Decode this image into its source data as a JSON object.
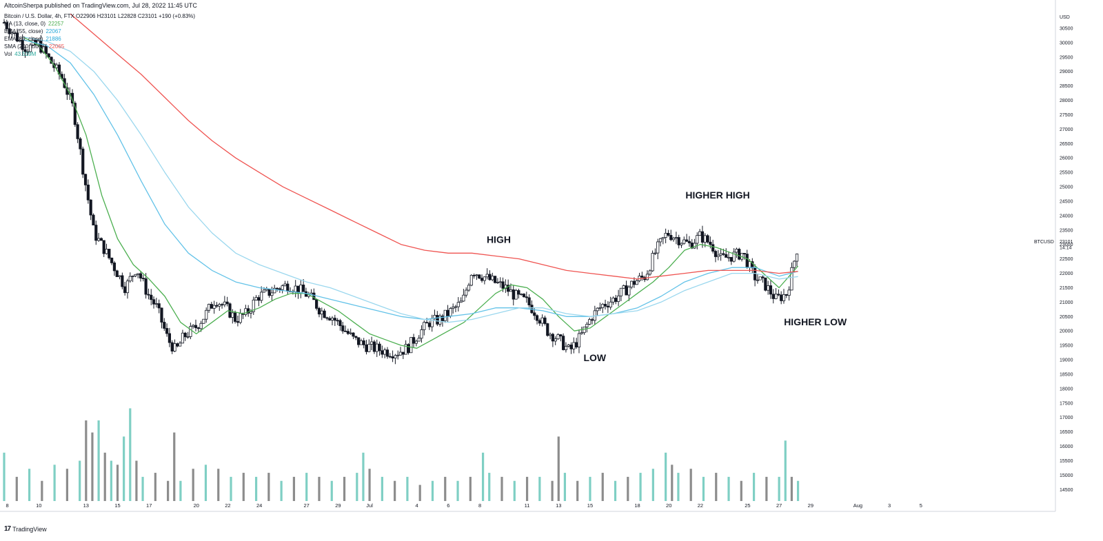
{
  "header": {
    "published_by": "AltcoinSherpa published on TradingView.com, Jul 28, 2022 11:45 UTC"
  },
  "legend": {
    "symbol_line": "Bitcoin / U.S. Dollar, 4h, FTX  O22906  H23101  L22828  C23101  +190 (+0.83%)",
    "indicators": [
      {
        "label": "MA (13, close, 0)",
        "value": "22257",
        "color": "#4caf50"
      },
      {
        "label": "EMA (55, close)",
        "value": "22067",
        "color": "#26a8d8"
      },
      {
        "label": "EMA (89, close)",
        "value": "21886",
        "color": "#26a8d8"
      },
      {
        "label": "SMA (200, close)",
        "value": "22065",
        "color": "#ef5350"
      },
      {
        "label": "Vol",
        "value": "43.519M",
        "color": "#26a69a"
      }
    ]
  },
  "footer": {
    "logo_label": "TradingView",
    "logo_mark": "17"
  },
  "colors": {
    "ma13": "#4caf50",
    "ema55": "#62c2e8",
    "ema89": "#9ad7ee",
    "sma200": "#ef5350",
    "vol_up": "#7fcfc4",
    "vol_down": "#8c8c8c",
    "candle_up_fill": "#ffffff",
    "candle_down_fill": "#131722",
    "axis_text": "#131722"
  },
  "chart_data": {
    "type": "line",
    "symbol": "BTCUSD",
    "price_axis_unit": "USD",
    "last_price": "23101",
    "countdown": "14:14",
    "y_ticks": [
      30500,
      30000,
      29500,
      29000,
      28500,
      28000,
      27500,
      27000,
      26500,
      26000,
      25500,
      25000,
      24500,
      24000,
      23500,
      23000,
      22500,
      22000,
      21500,
      21000,
      20500,
      20000,
      19500,
      19000,
      18500,
      18000,
      17500,
      17000,
      16500,
      16000,
      15500,
      15000,
      14500
    ],
    "ylim": [
      14100,
      31050
    ],
    "x_ticks": [
      {
        "label": "8",
        "day": 8
      },
      {
        "label": "10",
        "day": 10
      },
      {
        "label": "13",
        "day": 13
      },
      {
        "label": "15",
        "day": 15
      },
      {
        "label": "17",
        "day": 17
      },
      {
        "label": "20",
        "day": 20
      },
      {
        "label": "22",
        "day": 22
      },
      {
        "label": "24",
        "day": 24
      },
      {
        "label": "27",
        "day": 27
      },
      {
        "label": "29",
        "day": 29
      },
      {
        "label": "Jul",
        "day": 31
      },
      {
        "label": "4",
        "day": 34
      },
      {
        "label": "6",
        "day": 36
      },
      {
        "label": "8",
        "day": 38
      },
      {
        "label": "11",
        "day": 41
      },
      {
        "label": "13",
        "day": 43
      },
      {
        "label": "15",
        "day": 45
      },
      {
        "label": "18",
        "day": 48
      },
      {
        "label": "20",
        "day": 50
      },
      {
        "label": "22",
        "day": 52
      },
      {
        "label": "25",
        "day": 55
      },
      {
        "label": "27",
        "day": 57
      },
      {
        "label": "29",
        "day": 59
      },
      {
        "label": "Aug",
        "day": 62
      },
      {
        "label": "3",
        "day": 64
      },
      {
        "label": "5",
        "day": 66
      }
    ],
    "xlim": [
      7.8,
      74.5
    ],
    "price_path": {
      "day": [
        7.8,
        8.5,
        9.2,
        10.0,
        10.8,
        11.5,
        12.2,
        12.9,
        13.5,
        14.2,
        14.9,
        15.5,
        16.2,
        16.9,
        17.5,
        18.2,
        18.7,
        19.2,
        19.9,
        20.5,
        21.2,
        21.9,
        22.5,
        23.2,
        23.9,
        24.5,
        25.2,
        25.9,
        26.6,
        27.2,
        27.9,
        28.6,
        29.3,
        30.0,
        30.7,
        31.3,
        32.0,
        32.7,
        33.4,
        34.1,
        34.8,
        35.5,
        36.2,
        36.9,
        37.5,
        38.2,
        38.9,
        39.6,
        40.3,
        41.0,
        41.6,
        42.3,
        43.0,
        43.7,
        44.4,
        45.1,
        45.8,
        46.5,
        47.2,
        47.8,
        48.5,
        49.2,
        49.9,
        50.6,
        51.3,
        52.0,
        52.7,
        53.3,
        54.0,
        54.7,
        55.4,
        56.1,
        56.8,
        57.5,
        58.2
      ],
      "close": [
        30700,
        30250,
        29800,
        29950,
        29300,
        28750,
        27700,
        25300,
        23400,
        22800,
        22100,
        21500,
        22200,
        21300,
        20800,
        19700,
        19300,
        19800,
        20100,
        20500,
        21100,
        20800,
        20400,
        20600,
        21200,
        21300,
        21500,
        21600,
        21400,
        21200,
        20700,
        20500,
        20100,
        19700,
        19500,
        19400,
        19300,
        19250,
        19400,
        19900,
        20300,
        20400,
        20700,
        21000,
        22100,
        21900,
        21700,
        21500,
        21200,
        21000,
        20600,
        20000,
        19700,
        19300,
        19800,
        20500,
        20900,
        21100,
        21400,
        21700,
        21900,
        22800,
        23400,
        23200,
        23000,
        23300,
        23000,
        22500,
        22600,
        22700,
        21900,
        21600,
        21100,
        21300,
        23000
      ]
    },
    "series": [
      {
        "name": "MA (13, close, 0)",
        "day": [
          9.0,
          10.0,
          11.0,
          12.0,
          13.0,
          14.0,
          15.0,
          16.0,
          17.0,
          18.0,
          19.0,
          20.0,
          21.0,
          22.0,
          23.0,
          24.0,
          25.0,
          26.0,
          27.0,
          28.0,
          29.0,
          30.0,
          31.0,
          32.0,
          33.0,
          34.0,
          35.0,
          36.0,
          37.0,
          38.0,
          39.0,
          40.0,
          41.0,
          42.0,
          43.0,
          44.0,
          45.0,
          46.0,
          47.0,
          48.0,
          49.0,
          50.0,
          51.0,
          52.0,
          53.0,
          54.0,
          55.0,
          56.0,
          57.0,
          58.2
        ],
        "values": [
          30200,
          29900,
          29200,
          28200,
          26800,
          24700,
          23200,
          22300,
          21800,
          21200,
          20300,
          19900,
          20300,
          20700,
          20600,
          20800,
          21100,
          21300,
          21300,
          21000,
          20700,
          20300,
          19900,
          19700,
          19500,
          19400,
          19700,
          20000,
          20300,
          20800,
          21300,
          21600,
          21500,
          21100,
          20500,
          20000,
          20100,
          20500,
          20900,
          21300,
          21700,
          22200,
          22800,
          23000,
          22900,
          22700,
          22500,
          22000,
          21500,
          22250
        ]
      },
      {
        "name": "EMA (55, close)",
        "day": [
          9.0,
          10.5,
          12.0,
          13.5,
          15.0,
          16.5,
          18.0,
          19.5,
          21.0,
          22.5,
          24.0,
          25.5,
          27.0,
          28.5,
          30.0,
          31.5,
          33.0,
          34.5,
          36.0,
          37.5,
          39.0,
          40.5,
          42.0,
          43.5,
          45.0,
          46.5,
          48.0,
          49.5,
          51.0,
          52.5,
          54.0,
          55.5,
          57.0,
          58.2
        ],
        "values": [
          30100,
          29900,
          29300,
          28200,
          26800,
          25200,
          23700,
          22700,
          22100,
          21700,
          21500,
          21400,
          21300,
          21100,
          20900,
          20700,
          20500,
          20400,
          20500,
          20600,
          20800,
          20800,
          20700,
          20500,
          20500,
          20600,
          20800,
          21200,
          21700,
          22000,
          22200,
          22200,
          21900,
          22067
        ]
      },
      {
        "name": "EMA (89, close)",
        "day": [
          9.0,
          10.5,
          12.0,
          13.5,
          15.0,
          16.5,
          18.0,
          19.5,
          21.0,
          22.5,
          24.0,
          25.5,
          27.0,
          28.5,
          30.0,
          31.5,
          33.0,
          34.5,
          36.0,
          37.5,
          39.0,
          40.5,
          42.0,
          43.5,
          45.0,
          46.5,
          48.0,
          49.5,
          51.0,
          52.5,
          54.0,
          55.5,
          57.0,
          58.2
        ],
        "values": [
          30200,
          30050,
          29700,
          29000,
          28000,
          26800,
          25500,
          24300,
          23400,
          22700,
          22300,
          22000,
          21700,
          21500,
          21200,
          20900,
          20600,
          20400,
          20300,
          20400,
          20600,
          20800,
          20800,
          20600,
          20500,
          20600,
          20700,
          21000,
          21400,
          21700,
          22000,
          22000,
          21800,
          21886
        ]
      },
      {
        "name": "SMA (200, close)",
        "day": [
          12.0,
          13.5,
          15.0,
          16.5,
          18.0,
          19.5,
          21.0,
          22.5,
          24.0,
          25.5,
          27.0,
          28.5,
          30.0,
          31.5,
          33.0,
          34.5,
          36.0,
          37.5,
          39.0,
          40.5,
          42.0,
          43.5,
          45.0,
          46.5,
          48.0,
          49.5,
          51.0,
          52.5,
          54.0,
          55.5,
          57.0,
          58.2
        ],
        "values": [
          31000,
          30300,
          29600,
          28900,
          28100,
          27300,
          26600,
          26000,
          25500,
          25000,
          24600,
          24200,
          23800,
          23400,
          23000,
          22800,
          22700,
          22700,
          22600,
          22500,
          22300,
          22100,
          22000,
          21900,
          21800,
          21900,
          22000,
          22100,
          22100,
          22100,
          22000,
          22065
        ]
      }
    ],
    "volume": {
      "ylim_fraction_top": 0.3,
      "day": [
        7.8,
        8.6,
        9.4,
        10.2,
        11.0,
        11.8,
        12.6,
        13.0,
        13.4,
        13.8,
        14.2,
        14.6,
        15.0,
        15.4,
        15.8,
        16.2,
        16.6,
        17.4,
        18.2,
        18.6,
        19.0,
        19.8,
        20.6,
        21.4,
        22.2,
        23.0,
        23.8,
        24.6,
        25.4,
        26.2,
        27.0,
        27.8,
        28.6,
        29.4,
        30.2,
        30.6,
        31.0,
        31.8,
        32.6,
        33.4,
        34.2,
        35.0,
        35.8,
        36.6,
        37.4,
        38.2,
        38.6,
        39.4,
        40.2,
        41.0,
        41.8,
        42.6,
        43.0,
        43.4,
        44.2,
        45.0,
        45.8,
        46.6,
        47.4,
        48.2,
        49.0,
        49.8,
        50.2,
        50.6,
        51.4,
        52.2,
        53.0,
        53.8,
        54.6,
        55.4,
        56.2,
        57.0,
        57.4,
        57.8,
        58.2
      ],
      "values": [
        0.6,
        0.3,
        0.4,
        0.25,
        0.45,
        0.4,
        0.5,
        1.0,
        0.85,
        1.0,
        0.6,
        0.5,
        0.45,
        0.8,
        1.15,
        0.5,
        0.3,
        0.35,
        0.25,
        0.85,
        0.25,
        0.4,
        0.45,
        0.4,
        0.3,
        0.35,
        0.3,
        0.35,
        0.25,
        0.3,
        0.35,
        0.3,
        0.25,
        0.3,
        0.35,
        0.6,
        0.4,
        0.3,
        0.25,
        0.3,
        0.2,
        0.25,
        0.3,
        0.25,
        0.3,
        0.6,
        0.35,
        0.3,
        0.25,
        0.3,
        0.3,
        0.25,
        0.8,
        0.35,
        0.25,
        0.3,
        0.35,
        0.25,
        0.3,
        0.35,
        0.4,
        0.6,
        0.45,
        0.35,
        0.4,
        0.3,
        0.35,
        0.3,
        0.25,
        0.35,
        0.3,
        0.3,
        0.75,
        0.3,
        0.25
      ],
      "up": [
        1,
        0,
        1,
        0,
        1,
        0,
        1,
        0,
        0,
        1,
        0,
        1,
        0,
        1,
        1,
        0,
        1,
        0,
        0,
        0,
        1,
        0,
        1,
        0,
        1,
        0,
        1,
        0,
        1,
        0,
        1,
        0,
        1,
        0,
        1,
        1,
        0,
        1,
        0,
        1,
        0,
        1,
        0,
        1,
        0,
        1,
        1,
        0,
        1,
        0,
        1,
        0,
        0,
        1,
        0,
        1,
        0,
        1,
        0,
        1,
        1,
        1,
        0,
        1,
        0,
        1,
        0,
        1,
        0,
        1,
        0,
        1,
        1,
        0,
        1
      ]
    },
    "annotations": [
      {
        "text": "HIGH",
        "day": 39.2,
        "price": 23050
      },
      {
        "text": "LOW",
        "day": 45.3,
        "price": 18950
      },
      {
        "text": "HIGHER HIGH",
        "day": 53.1,
        "price": 24600
      },
      {
        "text": "HIGHER LOW",
        "day": 59.3,
        "price": 20200
      }
    ],
    "legend_position": "top-left",
    "grid": false
  }
}
